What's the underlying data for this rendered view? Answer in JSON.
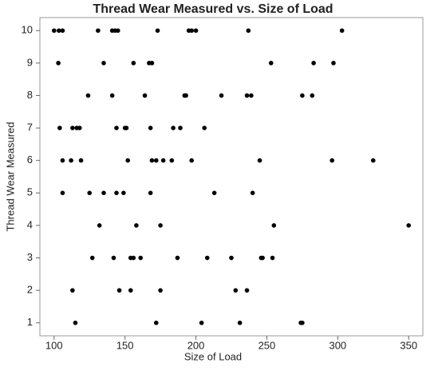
{
  "chart_data": {
    "type": "scatter",
    "title": "Thread Wear Measured vs. Size of Load",
    "x_label": "Size of Load",
    "y_label": "Thread Wear Measured",
    "xlim": [
      90,
      360
    ],
    "ylim": [
      0.6,
      10.4
    ],
    "xticks": [
      100,
      150,
      200,
      250,
      300,
      350
    ],
    "yticks": [
      1,
      2,
      3,
      4,
      5,
      6,
      7,
      8,
      9,
      10
    ],
    "color": "#000000",
    "x": [
      100,
      103.4,
      106,
      131,
      141,
      143,
      145,
      173,
      195,
      197,
      200,
      237,
      303,
      103,
      135,
      156,
      167,
      169,
      253,
      283,
      297,
      124,
      141,
      164,
      192,
      193,
      218,
      236,
      239,
      275,
      282,
      104,
      113,
      116,
      118,
      144,
      150,
      151,
      168,
      184,
      189,
      206,
      106,
      112,
      119,
      152,
      169,
      172,
      177,
      183,
      197,
      245,
      296,
      325,
      106,
      125,
      135,
      144,
      149,
      168,
      213,
      240,
      132,
      158,
      175,
      255,
      350,
      127,
      142,
      154,
      156,
      161,
      187,
      208,
      225,
      246,
      247,
      254,
      113,
      146,
      154,
      175,
      228,
      236,
      115,
      172,
      204,
      231,
      274,
      275
    ],
    "y": [
      10,
      10,
      10,
      10,
      10,
      10,
      10,
      10,
      10,
      10,
      10,
      10,
      10,
      9,
      9,
      9,
      9,
      9,
      9,
      9,
      9,
      8,
      8,
      8,
      8,
      8,
      8,
      8,
      8,
      8,
      8,
      7,
      7,
      7,
      7,
      7,
      7,
      7,
      7,
      7,
      7,
      7,
      6,
      6,
      6,
      6,
      6,
      6,
      6,
      6,
      6,
      6,
      6,
      6,
      5,
      5,
      5,
      5,
      5,
      5,
      5,
      5,
      4,
      4,
      4,
      4,
      4,
      3,
      3,
      3,
      3,
      3,
      3,
      3,
      3,
      3,
      3,
      3,
      2,
      2,
      2,
      2,
      2,
      2,
      1,
      1,
      1,
      1,
      1,
      1
    ]
  }
}
